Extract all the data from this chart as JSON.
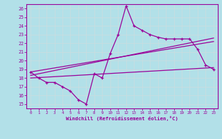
{
  "xlabel": "Windchill (Refroidissement éolien,°C)",
  "bg_color": "#b2e0e8",
  "line_color": "#990099",
  "grid_color": "#c8dde0",
  "ylim": [
    14.5,
    26.5
  ],
  "xlim": [
    -0.5,
    23.5
  ],
  "yticks": [
    15,
    16,
    17,
    18,
    19,
    20,
    21,
    22,
    23,
    24,
    25,
    26
  ],
  "xticks": [
    0,
    1,
    2,
    3,
    4,
    5,
    6,
    7,
    8,
    9,
    10,
    11,
    12,
    13,
    14,
    15,
    16,
    17,
    18,
    19,
    20,
    21,
    22,
    23
  ],
  "line1_x": [
    0,
    1,
    2,
    3,
    4,
    5,
    6,
    7,
    8,
    9,
    10,
    11,
    12,
    13,
    14,
    15,
    16,
    17,
    18,
    19,
    20,
    21,
    22,
    23
  ],
  "line1_y": [
    18.7,
    18.0,
    17.5,
    17.5,
    17.0,
    16.5,
    15.5,
    15.0,
    18.5,
    18.0,
    20.8,
    23.0,
    26.3,
    24.0,
    23.5,
    23.0,
    22.7,
    22.5,
    22.5,
    22.5,
    22.5,
    21.3,
    19.5,
    19.0
  ],
  "line2_x": [
    0,
    23
  ],
  "line2_y": [
    18.7,
    22.2
  ],
  "line3_x": [
    0,
    23
  ],
  "line3_y": [
    18.3,
    22.6
  ],
  "line4_x": [
    0,
    23
  ],
  "line4_y": [
    18.0,
    19.2
  ]
}
